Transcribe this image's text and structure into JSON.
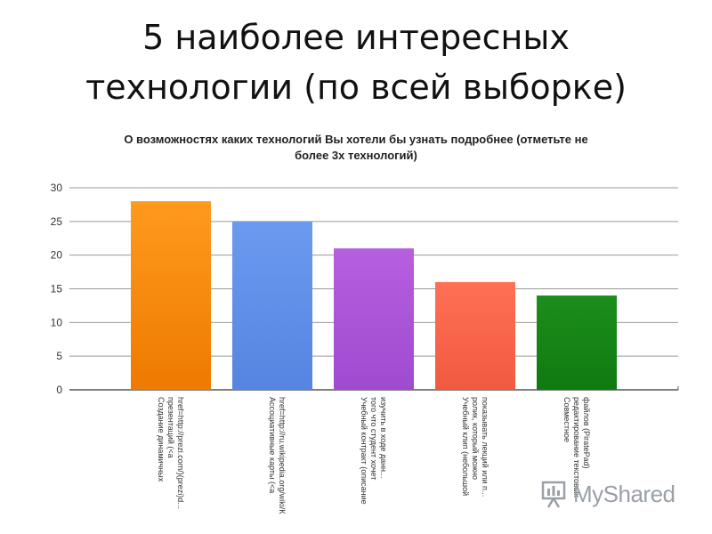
{
  "slide": {
    "title_line1": "5 наиболее интересных",
    "title_line2": "технологии (по всей выборке)"
  },
  "chart_data": {
    "type": "bar",
    "title_lines": [
      "О возможностях каких технологий Вы хотели бы узнать подробнее (отметьте не",
      "более 3х технологий)"
    ],
    "categories": [
      [
        "Создание динамичных",
        "презентаций (<a",
        "href=http://prezi.com/)(prezi)d..."
      ],
      [
        "Ассоциативные карты (<a",
        "href=http://ru.wikipedia.org/wiki/К"
      ],
      [
        "Учебный контракт (описание",
        "того что студент хочет",
        "изучить в ходе данн..."
      ],
      [
        "Учебный клип (небольшой",
        "ролик, который можно",
        "показывать лекций или п..."
      ],
      [
        "Совместное",
        "редактирование текстовых",
        "файлов (PiratePad)"
      ]
    ],
    "values": [
      28,
      25,
      21,
      16,
      14
    ],
    "colors": [
      "#ee7a00",
      "#5585e0",
      "#9f4bcf",
      "#f15a40",
      "#0f7a10"
    ],
    "colors_light": [
      "#ff9a1e",
      "#6b9af0",
      "#b65fdf",
      "#ff7054",
      "#1c8e1c"
    ],
    "ylim": [
      0,
      30
    ],
    "yticks": [
      0,
      5,
      10,
      15,
      20,
      25,
      30
    ],
    "grid": true,
    "legend": "none"
  },
  "watermark": {
    "text": "MyShared",
    "icon": "myshared-logo-icon"
  }
}
